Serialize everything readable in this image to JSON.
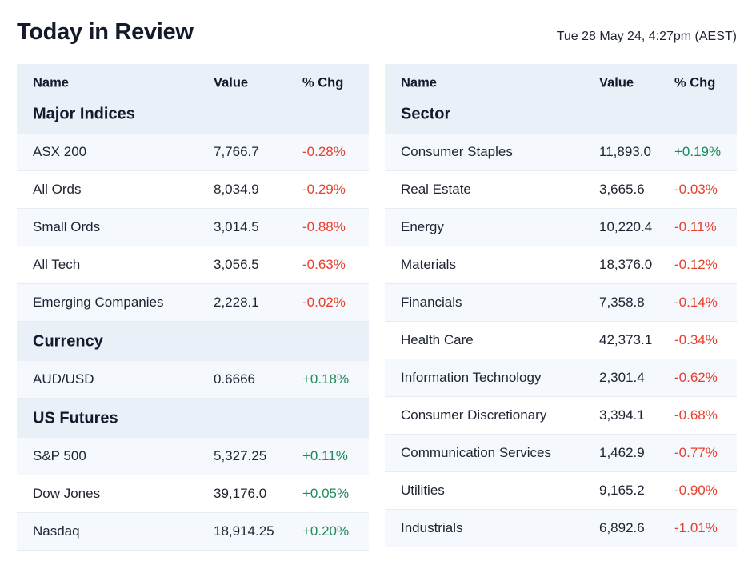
{
  "header": {
    "title": "Today in Review",
    "date": "Tue 28 May 24, 4:27pm (AEST)"
  },
  "columns": {
    "name": "Name",
    "value": "Value",
    "chg": "% Chg"
  },
  "colors": {
    "up": "#1e8a5c",
    "down": "#e8402e",
    "header_bg": "#e9f0f8"
  },
  "left": [
    {
      "section": "Major Indices",
      "rows": [
        {
          "name": "ASX 200",
          "value": "7,766.7",
          "chg": "-0.28%"
        },
        {
          "name": "All Ords",
          "value": "8,034.9",
          "chg": "-0.29%"
        },
        {
          "name": "Small Ords",
          "value": "3,014.5",
          "chg": "-0.88%"
        },
        {
          "name": "All Tech",
          "value": "3,056.5",
          "chg": "-0.63%"
        },
        {
          "name": "Emerging Companies",
          "value": "2,228.1",
          "chg": "-0.02%"
        }
      ]
    },
    {
      "section": "Currency",
      "rows": [
        {
          "name": "AUD/USD",
          "value": "0.6666",
          "chg": "+0.18%"
        }
      ]
    },
    {
      "section": "US Futures",
      "rows": [
        {
          "name": "S&P 500",
          "value": "5,327.25",
          "chg": "+0.11%"
        },
        {
          "name": "Dow Jones",
          "value": "39,176.0",
          "chg": "+0.05%"
        },
        {
          "name": "Nasdaq",
          "value": "18,914.25",
          "chg": "+0.20%"
        }
      ]
    }
  ],
  "right": [
    {
      "section": "Sector",
      "rows": [
        {
          "name": "Consumer Staples",
          "value": "11,893.0",
          "chg": "+0.19%"
        },
        {
          "name": "Real Estate",
          "value": "3,665.6",
          "chg": "-0.03%"
        },
        {
          "name": "Energy",
          "value": "10,220.4",
          "chg": "-0.11%"
        },
        {
          "name": "Materials",
          "value": "18,376.0",
          "chg": "-0.12%"
        },
        {
          "name": "Financials",
          "value": "7,358.8",
          "chg": "-0.14%"
        },
        {
          "name": "Health Care",
          "value": "42,373.1",
          "chg": "-0.34%"
        },
        {
          "name": "Information Technology",
          "value": "2,301.4",
          "chg": "-0.62%"
        },
        {
          "name": "Consumer Discretionary",
          "value": "3,394.1",
          "chg": "-0.68%"
        },
        {
          "name": "Communication Services",
          "value": "1,462.9",
          "chg": "-0.77%"
        },
        {
          "name": "Utilities",
          "value": "9,165.2",
          "chg": "-0.90%"
        },
        {
          "name": "Industrials",
          "value": "6,892.6",
          "chg": "-1.01%"
        }
      ]
    }
  ]
}
